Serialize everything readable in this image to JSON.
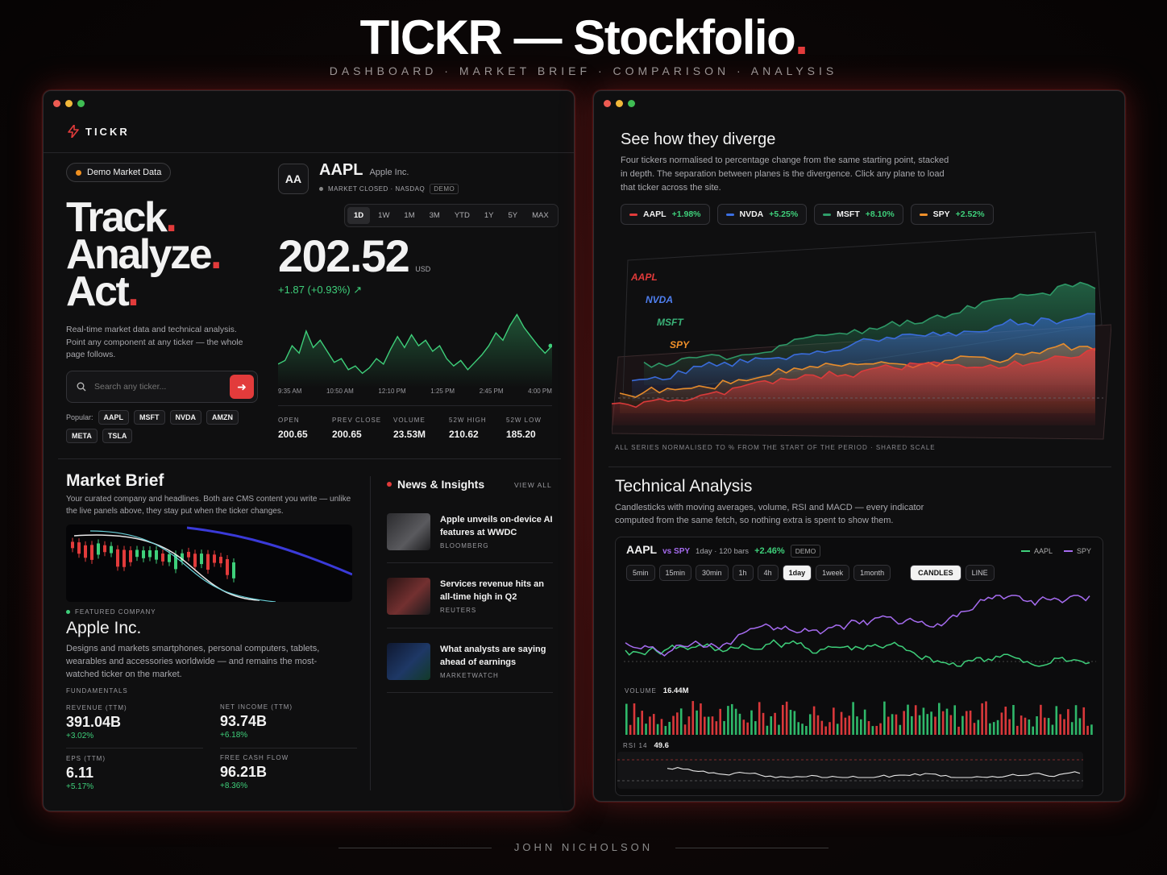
{
  "header": {
    "title": "TICKR — Stockfolio",
    "title_dot": ".",
    "subtitle": "DASHBOARD · MARKET BRIEF · COMPARISON · ANALYSIS"
  },
  "footer": {
    "author": "JOHN NICHOLSON"
  },
  "colors": {
    "accent": "#e23b3b",
    "positive": "#3ecf7a",
    "aapl": "#e23b3b",
    "nvda": "#3b6fe2",
    "msft": "#2f9e6a",
    "spy": "#f0902a",
    "compare": "#a66cf0"
  },
  "left": {
    "brand": "TICKR",
    "demo_pill": "Demo Market Data",
    "hero": {
      "line1": "Track",
      "line2": "Analyze",
      "line3": "Act",
      "dot": "."
    },
    "intro": "Real-time market data and technical analysis. Point any component at any ticker — the whole page follows.",
    "search": {
      "placeholder": "Search any ticker..."
    },
    "popular_label": "Popular:",
    "popular": [
      "AAPL",
      "MSFT",
      "NVDA",
      "AMZN",
      "META",
      "TSLA"
    ],
    "quote": {
      "logo": "AA",
      "symbol": "AAPL",
      "company": "Apple Inc.",
      "status": "MARKET CLOSED · NASDAQ",
      "demo_badge": "DEMO",
      "timeframes": [
        "1D",
        "1W",
        "1M",
        "3M",
        "YTD",
        "1Y",
        "5Y",
        "MAX"
      ],
      "active_timeframe": "1D",
      "price": "202.52",
      "currency": "USD",
      "change": "+1.87 (+0.93%) ↗",
      "time_ticks": [
        "9:35 AM",
        "10:50 AM",
        "12:10 PM",
        "1:25 PM",
        "2:45 PM",
        "4:00 PM"
      ],
      "stats": [
        {
          "label": "OPEN",
          "value": "200.65"
        },
        {
          "label": "PREV CLOSE",
          "value": "200.65"
        },
        {
          "label": "VOLUME",
          "value": "23.53M"
        },
        {
          "label": "52W HIGH",
          "value": "210.62"
        },
        {
          "label": "52W LOW",
          "value": "185.20"
        }
      ],
      "intraday": [
        200.6,
        200.8,
        201.6,
        201.2,
        202.4,
        201.5,
        201.9,
        201.3,
        200.7,
        200.9,
        200.3,
        200.5,
        200.1,
        200.4,
        200.9,
        200.6,
        201.4,
        202.1,
        201.5,
        202.2,
        201.6,
        201.9,
        201.3,
        201.6,
        200.9,
        200.5,
        200.8,
        200.3,
        200.7,
        201.1,
        201.6,
        202.3,
        201.9,
        202.7,
        203.3,
        202.6,
        202.1,
        201.6,
        201.2,
        201.6
      ]
    },
    "brief": {
      "title": "Market Brief",
      "desc": "Your curated company and headlines. Both are CMS content you write — unlike the live panels above, they stay put when the ticker changes.",
      "featured_label": "FEATURED COMPANY",
      "company": "Apple Inc.",
      "company_desc": "Designs and markets smartphones, personal computers, tablets, wearables and accessories worldwide — and remains the most-watched ticker on the market.",
      "fundamentals_label": "FUNDAMENTALS",
      "fundamentals": [
        {
          "label": "REVENUE (TTM)",
          "value": "391.04B",
          "change": "+3.02%"
        },
        {
          "label": "NET INCOME (TTM)",
          "value": "93.74B",
          "change": "+6.18%"
        },
        {
          "label": "EPS (TTM)",
          "value": "6.11",
          "change": "+5.17%"
        },
        {
          "label": "FREE CASH FLOW",
          "value": "96.21B",
          "change": "+8.36%"
        }
      ]
    },
    "news": {
      "title": "News & Insights",
      "view_all": "VIEW ALL",
      "items": [
        {
          "title": "Apple unveils on-device AI features at WWDC",
          "source": "BLOOMBERG"
        },
        {
          "title": "Services revenue hits an all-time high in Q2",
          "source": "REUTERS"
        },
        {
          "title": "What analysts are saying ahead of earnings",
          "source": "MARKETWATCH"
        }
      ]
    }
  },
  "right": {
    "diverge": {
      "title": "See how they diverge",
      "desc": "Four tickers normalised to percentage change from the same starting point, stacked in depth. The separation between planes is the divergence. Click any plane to load that ticker across the site.",
      "legend": [
        {
          "symbol": "AAPL",
          "change": "+1.98%",
          "color": "#e23b3b"
        },
        {
          "symbol": "NVDA",
          "change": "+5.25%",
          "color": "#3b6fe2"
        },
        {
          "symbol": "MSFT",
          "change": "+8.10%",
          "color": "#2f9e6a"
        },
        {
          "symbol": "SPY",
          "change": "+2.52%",
          "color": "#f0902a"
        }
      ],
      "plane_labels": [
        "AAPL",
        "NVDA",
        "MSFT",
        "SPY"
      ],
      "caption": "ALL SERIES NORMALISED TO % FROM THE START OF THE PERIOD · SHARED SCALE"
    },
    "ta": {
      "title": "Technical Analysis",
      "desc": "Candlesticks with moving averages, volume, RSI and MACD — every indicator computed from the same fetch, so nothing extra is spent to show them.",
      "symbol": "AAPL",
      "vs": "vs SPY",
      "meta": "1day · 120 bars",
      "change": "+2.46%",
      "demo": "DEMO",
      "legend": [
        "AAPL",
        "SPY"
      ],
      "intervals": [
        "5min",
        "15min",
        "30min",
        "1h",
        "4h",
        "1day",
        "1week",
        "1month"
      ],
      "active_interval": "1day",
      "modes": [
        "CANDLES",
        "LINE"
      ],
      "active_mode": "CANDLES",
      "volume_label": "VOLUME",
      "volume_value": "16.44M",
      "rsi_label": "RSI 14",
      "rsi_value": "49.6"
    }
  }
}
